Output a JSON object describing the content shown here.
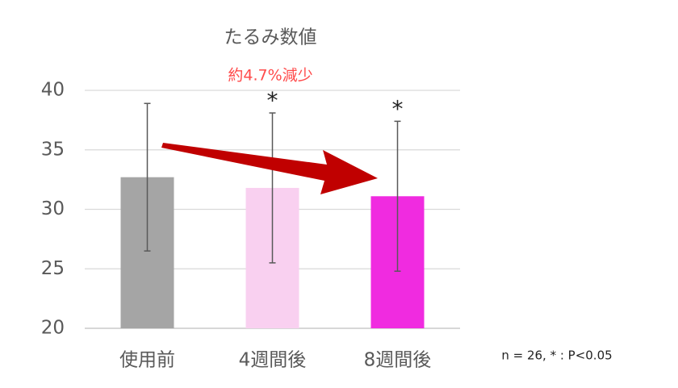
{
  "chart_data": {
    "type": "bar",
    "title": "たるみ数値",
    "annotation": "約4.7%減少",
    "note": "n = 26, * : P<0.05",
    "categories": [
      "使用前",
      "4週間後",
      "8週間後"
    ],
    "values": [
      32.7,
      31.8,
      31.1
    ],
    "errors": [
      6.2,
      6.3,
      6.3
    ],
    "significance": [
      null,
      "*",
      "*"
    ],
    "colors": [
      "#a5a5a5",
      "#f9d0f0",
      "#f02be0"
    ],
    "ylim": [
      20,
      40
    ],
    "yticks": [
      20,
      25,
      30,
      35,
      40
    ],
    "grid": true
  }
}
